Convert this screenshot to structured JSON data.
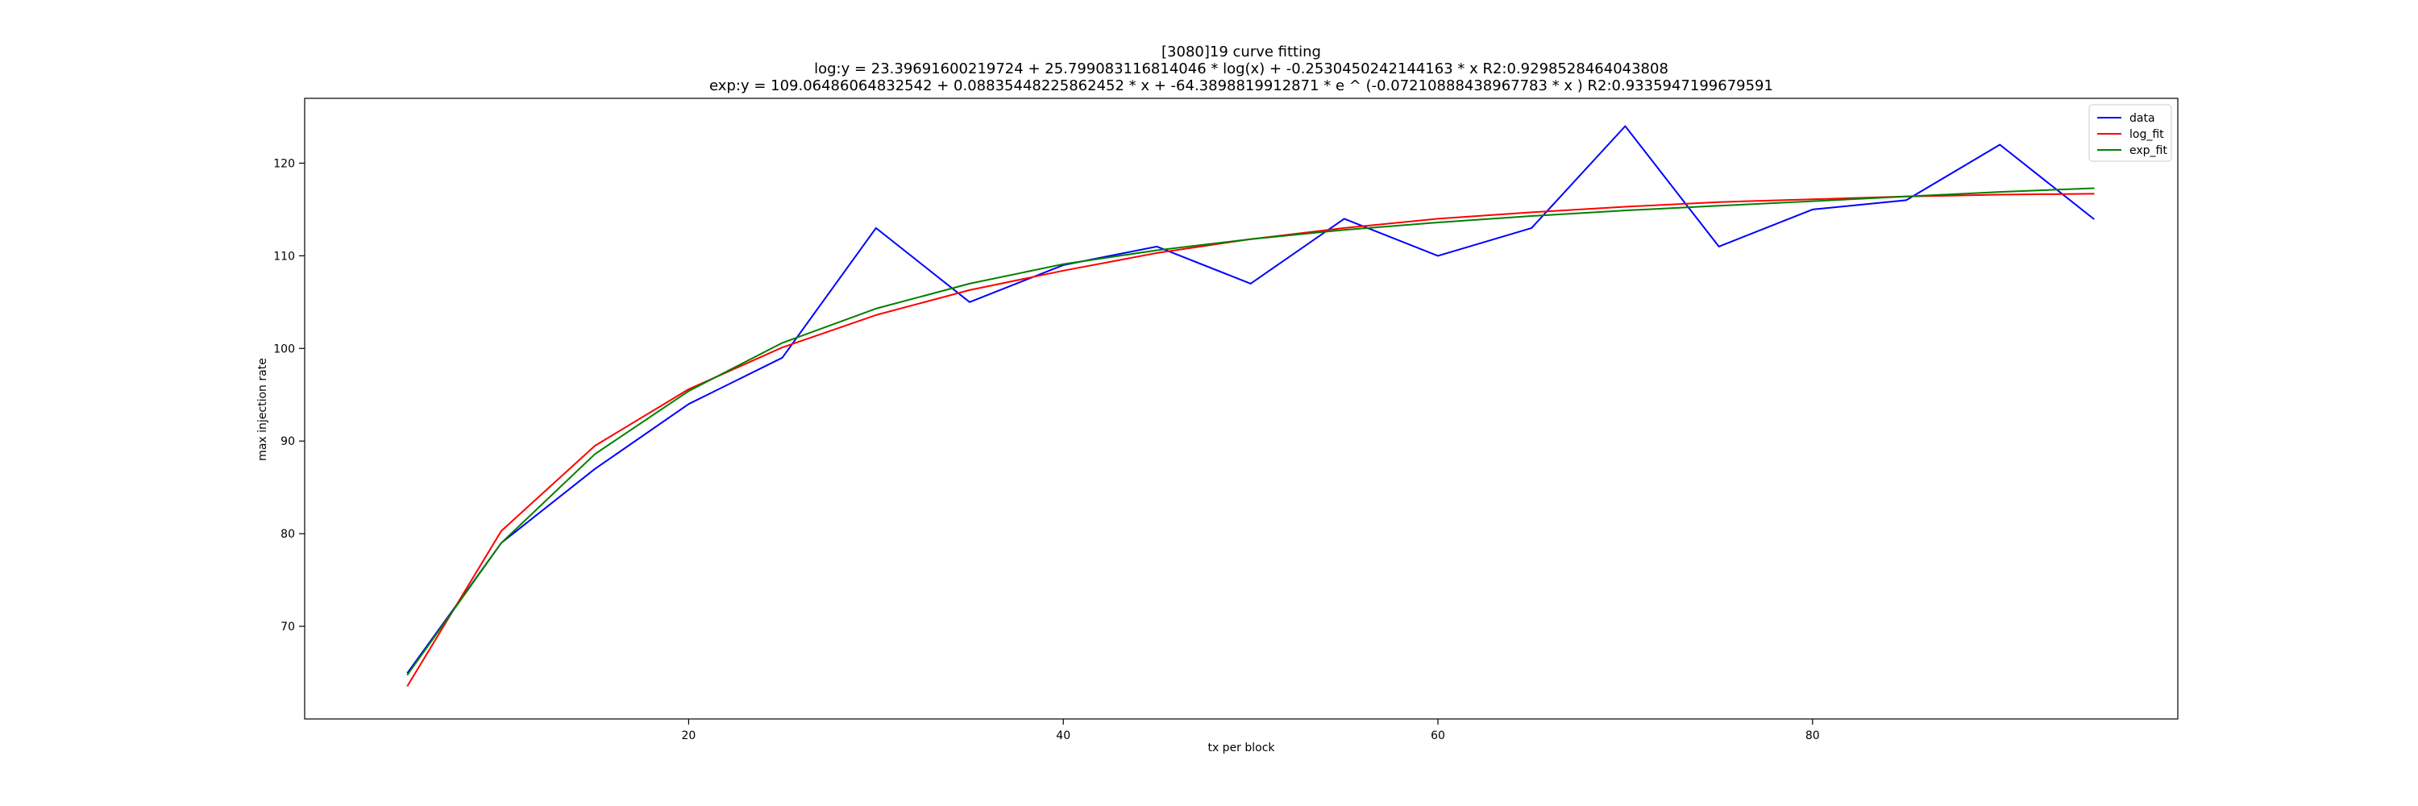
{
  "chart_data": {
    "type": "line",
    "title_lines": [
      "[3080]19 curve fitting",
      "log:y = 23.39691600219724 + 25.799083116814046 * log(x) + -0.2530450242144163 * x    R2:0.9298528464043808",
      "exp:y = 109.06486064832542 + 0.08835448225862452 * x + -64.3898819912871 * e ^ (-0.07210888438967783 * x )    R2:0.9335947199679591"
    ],
    "xlabel": "tx per block",
    "ylabel": "max injection rate",
    "xlim": [
      -0.5,
      99.5
    ],
    "ylim": [
      60,
      127
    ],
    "xticks": [
      20,
      40,
      60,
      80
    ],
    "yticks": [
      70,
      80,
      90,
      100,
      110,
      120
    ],
    "grid": false,
    "legend_position": "top-right",
    "x": [
      5,
      10,
      15,
      20,
      25,
      30,
      35,
      40,
      45,
      50,
      55,
      60,
      65,
      70,
      75,
      80,
      85,
      90,
      95
    ],
    "series": [
      {
        "name": "data",
        "color": "#0000ff",
        "values": [
          65,
          79,
          87,
          94,
          99,
          113,
          105,
          109,
          111,
          107,
          114,
          110,
          113,
          124,
          111,
          115,
          116,
          122,
          114
        ]
      },
      {
        "name": "log_fit",
        "color": "#ff0000",
        "values": [
          63.6,
          80.3,
          89.5,
          95.6,
          100.1,
          103.6,
          106.3,
          108.4,
          110.3,
          111.8,
          113.0,
          114.0,
          114.7,
          115.3,
          115.8,
          116.1,
          116.4,
          116.6,
          116.7
        ]
      },
      {
        "name": "exp_fit",
        "color": "#008000",
        "values": [
          64.8,
          79.0,
          88.6,
          95.4,
          100.6,
          104.3,
          107.0,
          109.1,
          110.6,
          111.8,
          112.8,
          113.6,
          114.3,
          114.9,
          115.4,
          115.9,
          116.4,
          116.9,
          117.3
        ]
      }
    ]
  }
}
